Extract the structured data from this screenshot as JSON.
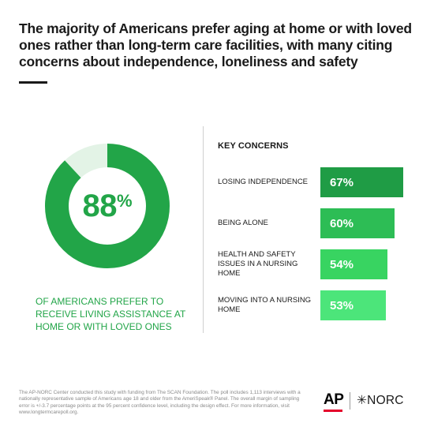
{
  "headline": "The majority of Americans prefer aging at home or with loved ones rather than long-term care facilities, with many citing concerns about independence, loneliness and safety",
  "colors": {
    "donut_fill": "#22a548",
    "donut_track": "#e3f3e6",
    "text": "#1a1a1a",
    "ap_red": "#e4002b"
  },
  "donut": {
    "value": 88,
    "number": "88",
    "percent_sign": "%",
    "caption": "OF AMERICANS PREFER TO RECEIVE LIVING ASSISTANCE AT HOME OR WITH LOVED ONES"
  },
  "concerns": {
    "title": "KEY CONCERNS"
  },
  "chart_data": {
    "type": "bar",
    "categories": [
      "LOSING INDEPENDENCE",
      "BEING ALONE",
      "HEALTH AND SAFETY ISSUES IN A NURSING HOME",
      "MOVING INTO A NURSING HOME"
    ],
    "values": [
      67,
      60,
      54,
      53
    ],
    "value_labels": [
      "67%",
      "60%",
      "54%",
      "53%"
    ],
    "bar_colors": [
      "#1f9c45",
      "#2dbd55",
      "#38d461",
      "#4ce57a"
    ],
    "orientation": "horizontal",
    "title": "KEY CONCERNS"
  },
  "footnote": "The AP-NORC Center conducted this study with funding from The SCAN Foundation. The poll includes 1,113 interviews with a nationally representative sample of Americans age 18 and older from the AmeriSpeak® Panel. The overall margin of sampling error is +/-3.7 percentage points at the 95 percent confidence level, including the design effect. For more information, visit www.longtermcarepoll.org.",
  "logos": {
    "ap": "AP",
    "norc": "✳NORC"
  }
}
